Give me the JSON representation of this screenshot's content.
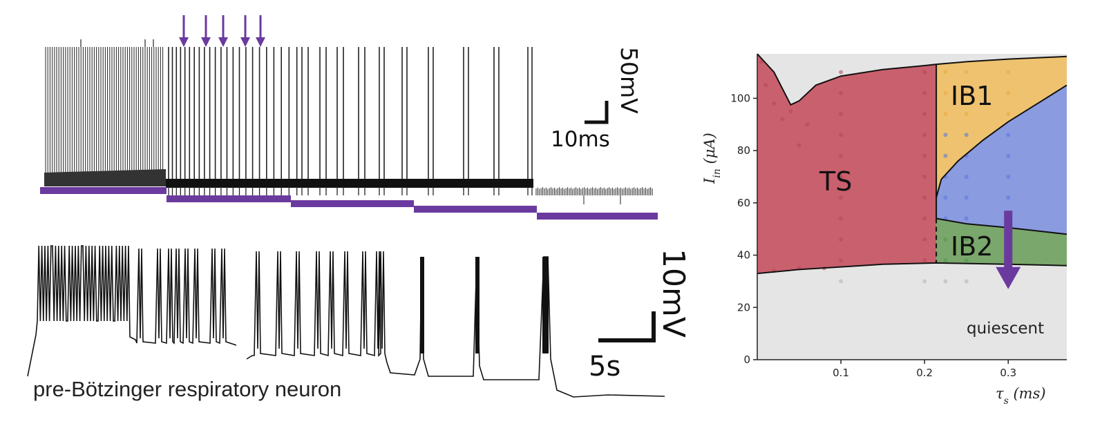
{
  "caption": "pre-Bötzinger respiratory neuron",
  "top_trace": {
    "scale_v": "50mV",
    "scale_t": "10ms",
    "step_color": "#6a3a9e",
    "arrow_count": 5
  },
  "bottom_trace": {
    "scale_v": "10mV",
    "scale_t": "5s"
  },
  "chart_data": {
    "type": "area",
    "title": "",
    "xlabel": "τ_s (ms)",
    "ylabel": "I_in (μA)",
    "xlim": [
      0.0,
      0.37
    ],
    "ylim": [
      0,
      117
    ],
    "xticks": [
      "0.1",
      "0.2",
      "0.3"
    ],
    "xtick_values": [
      0.1,
      0.2,
      0.3
    ],
    "yticks": [
      "0",
      "20",
      "40",
      "60",
      "80",
      "100"
    ],
    "ytick_values": [
      0,
      20,
      40,
      60,
      80,
      100
    ],
    "grid": false,
    "regions": [
      {
        "name": "TS",
        "color": "#c9606d"
      },
      {
        "name": "IB1",
        "color": "#efc26f"
      },
      {
        "name": "IB2",
        "color": "#7aa76b"
      },
      {
        "name": "quiescent",
        "color": "#e5e5e5"
      }
    ],
    "unlabeled_region_color": "#8a9be0",
    "boundaries": {
      "ts_upper": {
        "x": [
          0.0,
          0.02,
          0.04,
          0.05,
          0.07,
          0.1,
          0.15,
          0.2,
          0.214
        ],
        "y": [
          117,
          110,
          97.5,
          99,
          105,
          108.5,
          111,
          112.5,
          113
        ]
      },
      "ib1_upper": {
        "x": [
          0.214,
          0.25,
          0.3,
          0.37
        ],
        "y": [
          113,
          114,
          115,
          116
        ]
      },
      "ib1_lower": {
        "x": [
          0.214,
          0.22,
          0.24,
          0.27,
          0.3,
          0.34,
          0.37
        ],
        "y": [
          62,
          69,
          76,
          84,
          91,
          99,
          105
        ]
      },
      "ib2_upper": {
        "x": [
          0.214,
          0.25,
          0.3,
          0.37
        ],
        "y": [
          54,
          52,
          50.5,
          48
        ]
      },
      "lower": {
        "x": [
          0.0,
          0.05,
          0.1,
          0.15,
          0.214,
          0.3,
          0.37
        ],
        "y": [
          33,
          34.5,
          35.5,
          36.5,
          37,
          36.5,
          36
        ]
      },
      "ts_right_x": 0.214
    },
    "arrow": {
      "x": 0.3,
      "y_from": 57,
      "y_to": 27,
      "color": "#6a3a9e"
    }
  }
}
